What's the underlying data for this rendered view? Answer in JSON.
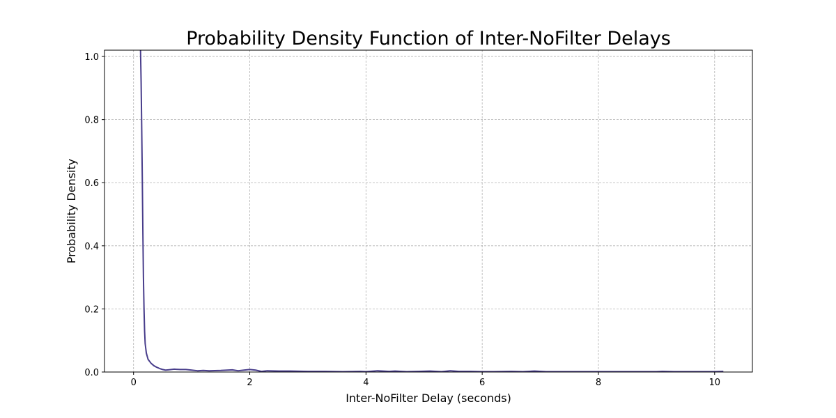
{
  "chart_data": {
    "type": "line",
    "title": "Probability Density Function of Inter-NoFilter Delays",
    "xlabel": "Inter-NoFilter Delay (seconds)",
    "ylabel": "Probability Density",
    "xlim": [
      -0.5,
      10.65
    ],
    "ylim": [
      0,
      1.02
    ],
    "xticks": [
      0,
      2,
      4,
      6,
      8,
      10
    ],
    "xtick_labels": [
      "0",
      "2",
      "4",
      "6",
      "8",
      "10"
    ],
    "yticks": [
      0.0,
      0.2,
      0.4,
      0.6,
      0.8,
      1.0
    ],
    "ytick_labels": [
      "0.0",
      "0.2",
      "0.4",
      "0.6",
      "0.8",
      "1.0"
    ],
    "grid": true,
    "line_color": "#483d8b",
    "series": [
      {
        "x": [
          0.12,
          0.13,
          0.14,
          0.15,
          0.16,
          0.17,
          0.18,
          0.19,
          0.2,
          0.22,
          0.25,
          0.3,
          0.35,
          0.4,
          0.45,
          0.5,
          0.55,
          0.6,
          0.7,
          0.8,
          0.9,
          1.0,
          1.1,
          1.2,
          1.3,
          1.5,
          1.7,
          1.8,
          1.9,
          2.0,
          2.1,
          2.2,
          2.3,
          2.5,
          2.7,
          3.0,
          3.3,
          3.6,
          3.9,
          4.0,
          4.2,
          4.4,
          4.5,
          4.7,
          4.9,
          5.1,
          5.3,
          5.45,
          5.6,
          5.8,
          6.0,
          6.2,
          6.5,
          6.7,
          6.9,
          7.1,
          7.5,
          8.0,
          8.5,
          9.0,
          9.1,
          9.3,
          9.6,
          10.0,
          10.15
        ],
        "y": [
          1.02,
          0.92,
          0.78,
          0.62,
          0.45,
          0.3,
          0.2,
          0.13,
          0.09,
          0.06,
          0.04,
          0.028,
          0.02,
          0.015,
          0.011,
          0.008,
          0.006,
          0.007,
          0.009,
          0.008,
          0.008,
          0.006,
          0.004,
          0.005,
          0.004,
          0.005,
          0.007,
          0.004,
          0.006,
          0.008,
          0.006,
          0.002,
          0.004,
          0.003,
          0.003,
          0.002,
          0.002,
          0.001,
          0.002,
          0.001,
          0.004,
          0.002,
          0.003,
          0.001,
          0.002,
          0.003,
          0.001,
          0.004,
          0.002,
          0.002,
          0.001,
          0.001,
          0.002,
          0.001,
          0.003,
          0.001,
          0.001,
          0.001,
          0.001,
          0.001,
          0.002,
          0.001,
          0.001,
          0.001,
          0.002
        ]
      }
    ]
  }
}
